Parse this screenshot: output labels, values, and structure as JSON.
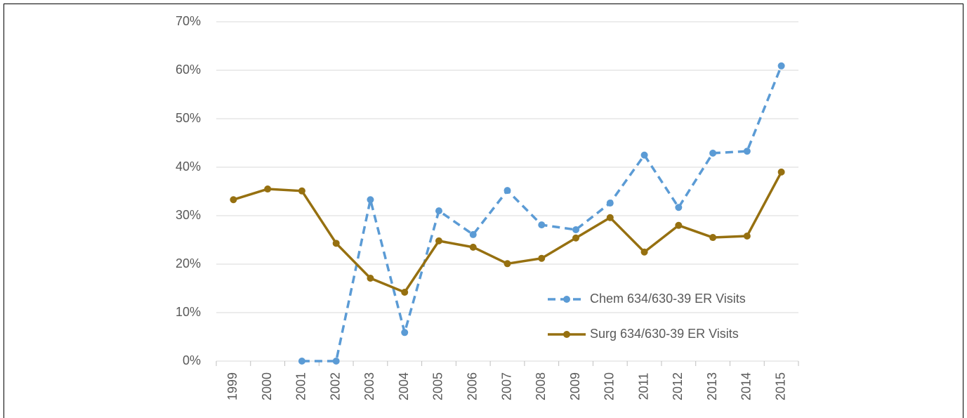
{
  "chart_data": {
    "type": "line",
    "categories": [
      "1999",
      "2000",
      "2001",
      "2002",
      "2003",
      "2004",
      "2005",
      "2006",
      "2007",
      "2008",
      "2009",
      "2010",
      "2011",
      "2012",
      "2013",
      "2014",
      "2015"
    ],
    "series": [
      {
        "name": "Chem 634/630-39 ER Visits",
        "color": "#5b9bd5",
        "dashed": true,
        "values": [
          null,
          null,
          0,
          0,
          33.3,
          5.9,
          31.0,
          26.1,
          35.2,
          28.1,
          27.1,
          32.6,
          42.5,
          31.7,
          42.9,
          43.3,
          60.9
        ]
      },
      {
        "name": "Surg 634/630-39 ER Visits",
        "color": "#967010",
        "dashed": false,
        "values": [
          33.3,
          35.5,
          35.1,
          24.3,
          17.1,
          14.2,
          24.8,
          23.5,
          20.1,
          21.2,
          25.4,
          29.6,
          22.5,
          28.0,
          25.5,
          25.8,
          39.0
        ]
      }
    ],
    "ylim": [
      0,
      70
    ],
    "yticks": [
      {
        "value": 0,
        "label": "0%"
      },
      {
        "value": 10,
        "label": "10%"
      },
      {
        "value": 20,
        "label": "20%"
      },
      {
        "value": 30,
        "label": "30%"
      },
      {
        "value": 40,
        "label": "40%"
      },
      {
        "value": 50,
        "label": "50%"
      },
      {
        "value": 60,
        "label": "60%"
      },
      {
        "value": 70,
        "label": "70%"
      }
    ],
    "grid": true,
    "markers": true,
    "legend": "lower right"
  }
}
